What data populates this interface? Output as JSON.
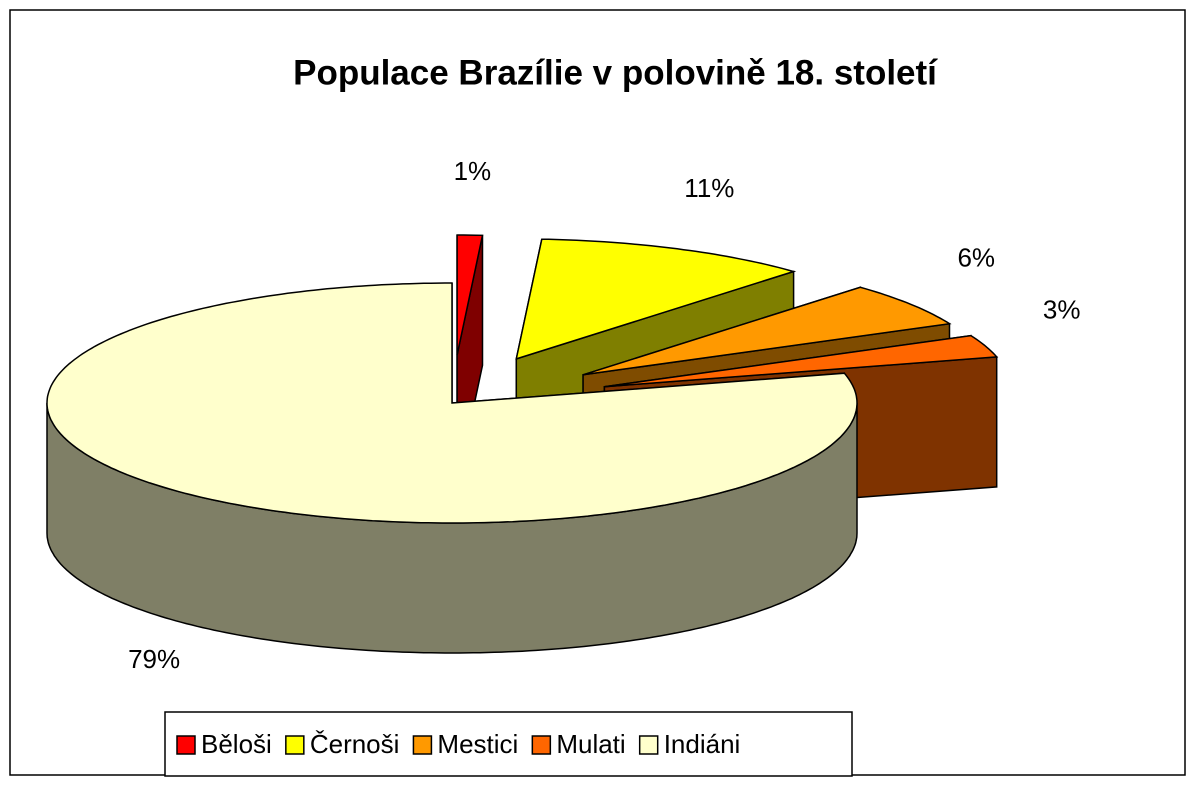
{
  "chart_data": {
    "type": "pie3d",
    "title": "Populace Brazílie v polovině 18. století",
    "categories": [
      "Běloši",
      "Černoši",
      "Mestici",
      "Mulati",
      "Indiáni"
    ],
    "values": [
      1,
      11,
      6,
      3,
      79
    ],
    "value_labels": [
      "1%",
      "11%",
      "6%",
      "3%",
      "79%"
    ],
    "colors": [
      "#ff0000",
      "#ffff00",
      "#ff9900",
      "#ff6600",
      "#ffffcc"
    ],
    "legend": "bottom"
  }
}
